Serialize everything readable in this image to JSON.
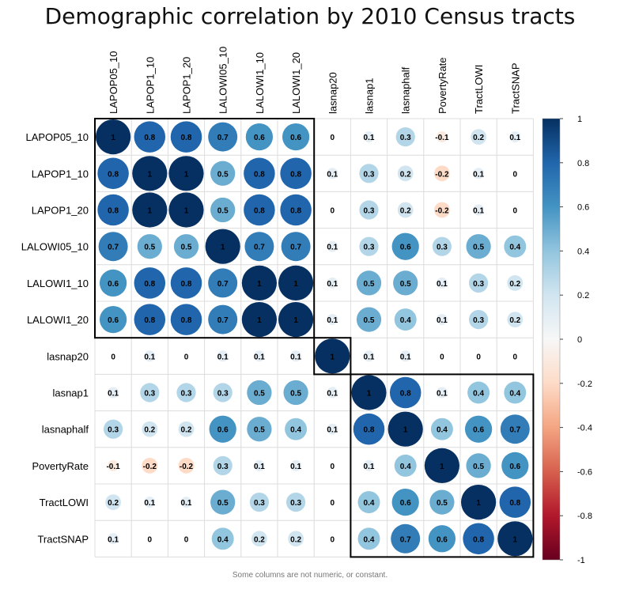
{
  "title": "Demographic correlation by 2010 Census tracts",
  "footnote": "Some columns are not numeric, or constant.",
  "chart_data": {
    "type": "heatmap",
    "style": "circle correlation matrix",
    "variables": [
      "LAPOP05_10",
      "LAPOP1_10",
      "LAPOP1_20",
      "LALOWI05_10",
      "LALOWI1_10",
      "LALOWI1_20",
      "lasnap20",
      "lasnap1",
      "lasnaphalf",
      "PovertyRate",
      "TractLOWI",
      "TractSNAP"
    ],
    "matrix": [
      [
        1,
        0.8,
        0.8,
        0.7,
        0.6,
        0.6,
        0,
        0.1,
        0.3,
        -0.1,
        0.2,
        0.1
      ],
      [
        0.8,
        1,
        1,
        0.5,
        0.8,
        0.8,
        0.1,
        0.3,
        0.2,
        -0.2,
        0.1,
        0
      ],
      [
        0.8,
        1,
        1,
        0.5,
        0.8,
        0.8,
        0,
        0.3,
        0.2,
        -0.2,
        0.1,
        0
      ],
      [
        0.7,
        0.5,
        0.5,
        1,
        0.7,
        0.7,
        0.1,
        0.3,
        0.6,
        0.3,
        0.5,
        0.4
      ],
      [
        0.6,
        0.8,
        0.8,
        0.7,
        1,
        1,
        0.1,
        0.5,
        0.5,
        0.1,
        0.3,
        0.2
      ],
      [
        0.6,
        0.8,
        0.8,
        0.7,
        1,
        1,
        0.1,
        0.5,
        0.4,
        0.1,
        0.3,
        0.2
      ],
      [
        0,
        0.1,
        0,
        0.1,
        0.1,
        0.1,
        1,
        0.1,
        0.1,
        0,
        0,
        0
      ],
      [
        0.1,
        0.3,
        0.3,
        0.3,
        0.5,
        0.5,
        0.1,
        1,
        0.8,
        0.1,
        0.4,
        0.4
      ],
      [
        0.3,
        0.2,
        0.2,
        0.6,
        0.5,
        0.4,
        0.1,
        0.8,
        1,
        0.4,
        0.6,
        0.7
      ],
      [
        -0.1,
        -0.2,
        -0.2,
        0.3,
        0.1,
        0.1,
        0,
        0.1,
        0.4,
        1,
        0.5,
        0.6
      ],
      [
        0.2,
        0.1,
        0.1,
        0.5,
        0.3,
        0.3,
        0,
        0.4,
        0.6,
        0.5,
        1,
        0.8
      ],
      [
        0.1,
        0,
        0,
        0.4,
        0.2,
        0.2,
        0,
        0.4,
        0.7,
        0.6,
        0.8,
        1
      ]
    ],
    "clusters": [
      [
        0,
        5
      ],
      [
        6,
        6
      ],
      [
        7,
        11
      ]
    ],
    "color_scale": {
      "range": [
        -1,
        1
      ],
      "ticks": [
        1,
        0.8,
        0.6,
        0.4,
        0.2,
        0,
        -0.2,
        -0.4,
        -0.6,
        -0.8,
        -1
      ],
      "colors": [
        "#67001f",
        "#b2182b",
        "#d6604d",
        "#f4a582",
        "#fddbc7",
        "#f7f7f7",
        "#d1e5f0",
        "#92c5de",
        "#4393c3",
        "#2166ac",
        "#053061"
      ]
    },
    "legend_position": "right",
    "grid": true
  }
}
